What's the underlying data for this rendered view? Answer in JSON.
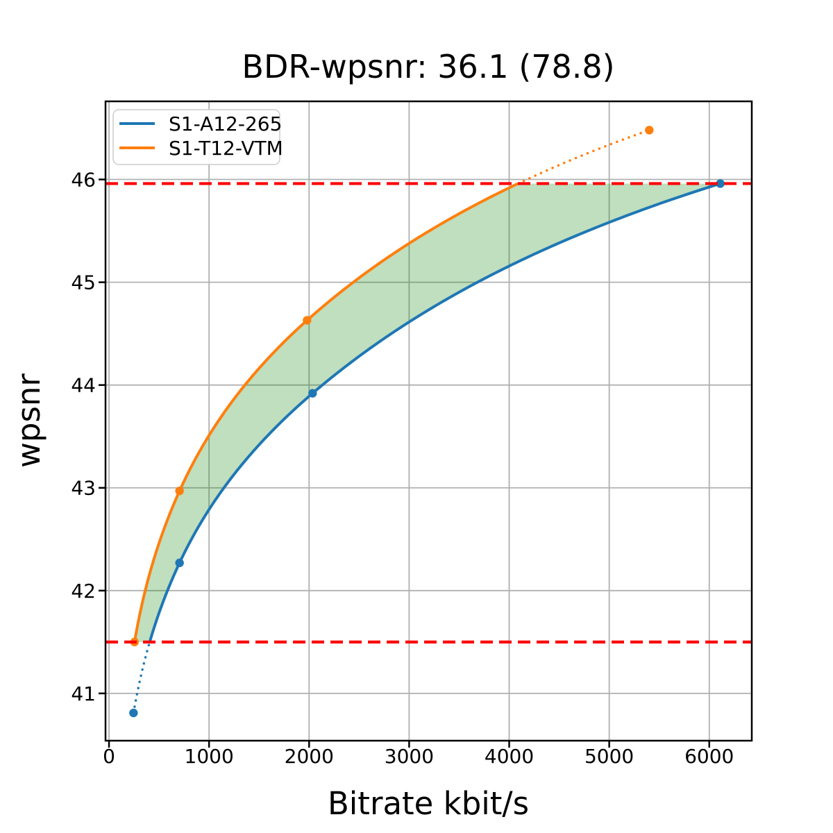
{
  "chart_data": {
    "type": "line",
    "title": "BDR-wpsnr: 36.1 (78.8)",
    "xlabel": "Bitrate kbit/s",
    "ylabel": "wpsnr",
    "xlim": [
      -35,
      6425
    ],
    "ylim": [
      40.54,
      46.76
    ],
    "x_ticks": [
      0,
      1000,
      2000,
      3000,
      4000,
      5000,
      6000
    ],
    "y_ticks": [
      41,
      42,
      43,
      44,
      45,
      46
    ],
    "grid": true,
    "grid_color": "#b0b0b0",
    "legend_position": "upper left",
    "series": [
      {
        "name": "S1-A12-265",
        "color": "#1f77b4",
        "x": [
          245,
          705,
          2035,
          6110
        ],
        "y": [
          40.81,
          42.27,
          43.92,
          45.96
        ]
      },
      {
        "name": "S1-T12-VTM",
        "color": "#ff7f0e",
        "x": [
          255,
          705,
          1980,
          5400
        ],
        "y": [
          41.5,
          42.97,
          44.63,
          46.48
        ]
      }
    ],
    "hlines": {
      "color": "#ff0000",
      "style": "dashed",
      "values": [
        41.5,
        45.96
      ]
    },
    "fill_between": {
      "color": "#008000",
      "opacity": 0.25,
      "upper_series": "S1-T12-VTM",
      "lower_series": "S1-A12-265",
      "y_range": [
        41.5,
        45.96
      ]
    }
  }
}
